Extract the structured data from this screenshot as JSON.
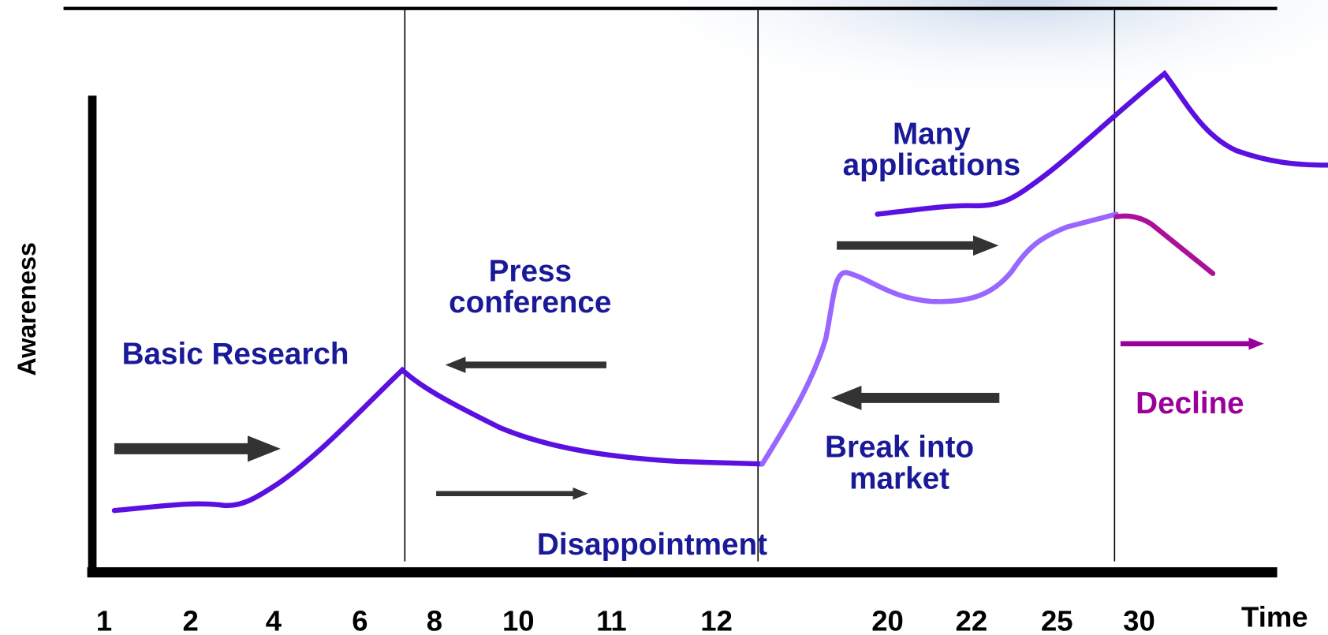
{
  "y_axis_label": "Awareness",
  "x_axis_label": "Time",
  "x_labels": [
    "1",
    "2",
    "4",
    "6",
    "8",
    "10",
    "11",
    "12",
    "20",
    "22",
    "25",
    "30"
  ],
  "annotations": [
    {
      "lines": [
        "Basic Research"
      ]
    },
    {
      "lines": [
        "Press",
        "conference"
      ]
    },
    {
      "lines": [
        "Disappointment"
      ]
    },
    {
      "lines": [
        "Many",
        "applications"
      ]
    },
    {
      "lines": [
        "Break into",
        "market"
      ]
    },
    {
      "lines": [
        "Decline"
      ]
    }
  ]
}
